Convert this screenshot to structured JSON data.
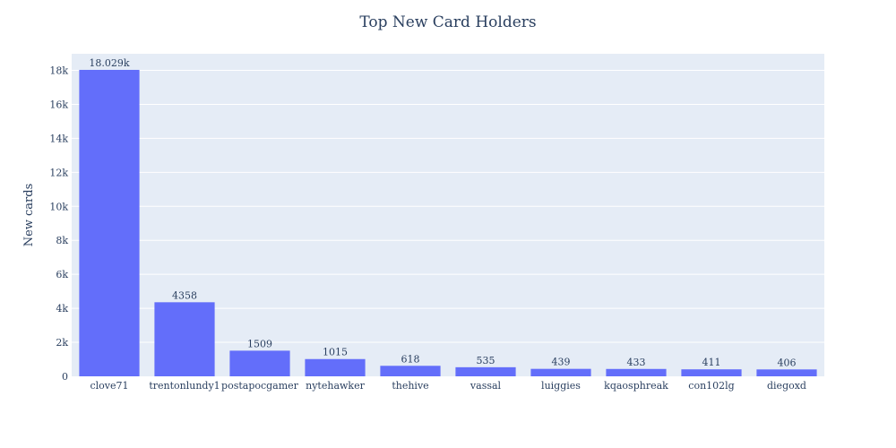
{
  "chart_data": {
    "type": "bar",
    "title": "Top New Card Holders",
    "xlabel": "",
    "ylabel": "New cards",
    "categories": [
      "clove71",
      "trentonlundy1",
      "postapocgamer",
      "nytehawker",
      "thehive",
      "vassal",
      "luiggies",
      "kqaosphreak",
      "con102lg",
      "diegoxd"
    ],
    "values": [
      18029,
      4358,
      1509,
      1015,
      618,
      535,
      439,
      433,
      411,
      406
    ],
    "value_labels": [
      "18.029k",
      "4358",
      "1509",
      "1015",
      "618",
      "535",
      "439",
      "433",
      "411",
      "406"
    ],
    "y_ticks": [
      0,
      2000,
      4000,
      6000,
      8000,
      10000,
      12000,
      14000,
      16000,
      18000
    ],
    "y_tick_labels": [
      "0",
      "2k",
      "4k",
      "6k",
      "8k",
      "10k",
      "12k",
      "14k",
      "16k",
      "18k"
    ],
    "ylim": [
      0,
      18977
    ],
    "grid": true,
    "colors": {
      "bar": "#636efa",
      "plot_bg": "#e5ecf6",
      "grid": "#ffffff",
      "text": "#2a3f5f"
    }
  }
}
